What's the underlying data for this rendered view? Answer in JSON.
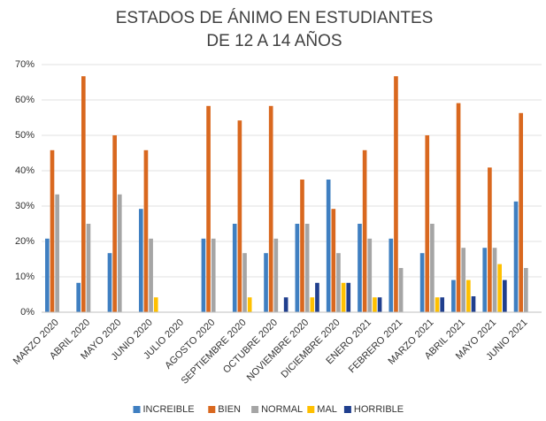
{
  "chart_data": {
    "type": "bar",
    "title": "ESTADOS DE ÁNIMO EN ESTUDIANTES DE 12 A 14 AÑOS",
    "categories": [
      "MARZO 2020",
      "ABRIL 2020",
      "MAYO 2020",
      "JUNIO 2020",
      "JULIO 2020",
      "AGOSTO 2020",
      "SEPTIEMBRE 2020",
      "OCTUBRE 2020",
      "NOVIEMBRE 2020",
      "DICIEMBRE 2020",
      "ENERO 2021",
      "FEBRERO 2021",
      "MARZO 2021",
      "ABRIL 2021",
      "MAYO 2021",
      "JUNIO 2021"
    ],
    "series": [
      {
        "name": "INCREIBLE",
        "color": "#3f7fc1",
        "values": [
          20.8,
          8.3,
          16.7,
          29.2,
          0,
          20.8,
          25,
          16.7,
          25,
          37.5,
          25,
          20.8,
          16.7,
          9.1,
          18.2,
          31.3
        ]
      },
      {
        "name": "BIEN",
        "color": "#d9681f",
        "values": [
          45.8,
          66.7,
          50,
          45.8,
          0,
          58.3,
          54.2,
          58.3,
          37.5,
          29.2,
          45.8,
          66.7,
          50,
          59.1,
          40.9,
          56.3
        ]
      },
      {
        "name": "NORMAL",
        "color": "#a5a5a5",
        "values": [
          33.3,
          25,
          33.3,
          20.8,
          0,
          20.8,
          16.7,
          20.8,
          25,
          16.7,
          20.8,
          12.5,
          25,
          18.2,
          18.2,
          12.5
        ]
      },
      {
        "name": "MAL",
        "color": "#ffc000",
        "values": [
          0,
          0,
          0,
          4.2,
          0,
          0,
          4.2,
          0,
          4.2,
          8.3,
          4.2,
          0,
          4.2,
          9.1,
          13.6,
          0
        ]
      },
      {
        "name": "HORRIBLE",
        "color": "#203f8e",
        "values": [
          0,
          0,
          0,
          0,
          0,
          0,
          0,
          4.2,
          8.3,
          8.3,
          4.2,
          0,
          4.2,
          4.5,
          9.1,
          0
        ]
      }
    ],
    "ylim": [
      0,
      70
    ],
    "yticks": [
      {
        "value": 0,
        "label": "0%"
      },
      {
        "value": 10,
        "label": "10%"
      },
      {
        "value": 20,
        "label": "20%"
      },
      {
        "value": 30,
        "label": "30%"
      },
      {
        "value": 40,
        "label": "40%"
      },
      {
        "value": 50,
        "label": "50%"
      },
      {
        "value": 60,
        "label": "60%"
      },
      {
        "value": 70,
        "label": "70%"
      }
    ],
    "grid": true,
    "legend": "bottom"
  }
}
